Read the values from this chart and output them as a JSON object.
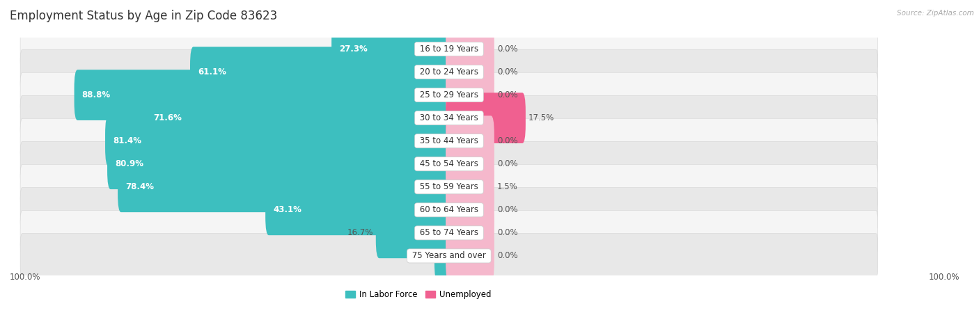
{
  "title": "Employment Status by Age in Zip Code 83623",
  "source": "Source: ZipAtlas.com",
  "age_groups": [
    "16 to 19 Years",
    "20 to 24 Years",
    "25 to 29 Years",
    "30 to 34 Years",
    "35 to 44 Years",
    "45 to 54 Years",
    "55 to 59 Years",
    "60 to 64 Years",
    "65 to 74 Years",
    "75 Years and over"
  ],
  "labor_force": [
    27.3,
    61.1,
    88.8,
    71.6,
    81.4,
    80.9,
    78.4,
    43.1,
    16.7,
    2.7
  ],
  "unemployed": [
    0.0,
    0.0,
    0.0,
    17.5,
    0.0,
    0.0,
    1.5,
    0.0,
    0.0,
    0.0
  ],
  "labor_force_color": "#3dbfbf",
  "unemployed_color_light": "#f5b8cc",
  "unemployed_color_strong": "#f06090",
  "unemployed_threshold": 5.0,
  "row_bg_light": "#f5f5f5",
  "row_bg_dark": "#e8e8e8",
  "title_fontsize": 12,
  "label_fontsize": 8.5,
  "bar_height": 0.6,
  "x_max": 100.0,
  "min_unemployed_display": 10.0,
  "label_threshold_inside": 20.0,
  "legend_labor": "In Labor Force",
  "legend_unemployed": "Unemployed",
  "axis_label_left": "100.0%",
  "axis_label_right": "100.0%"
}
